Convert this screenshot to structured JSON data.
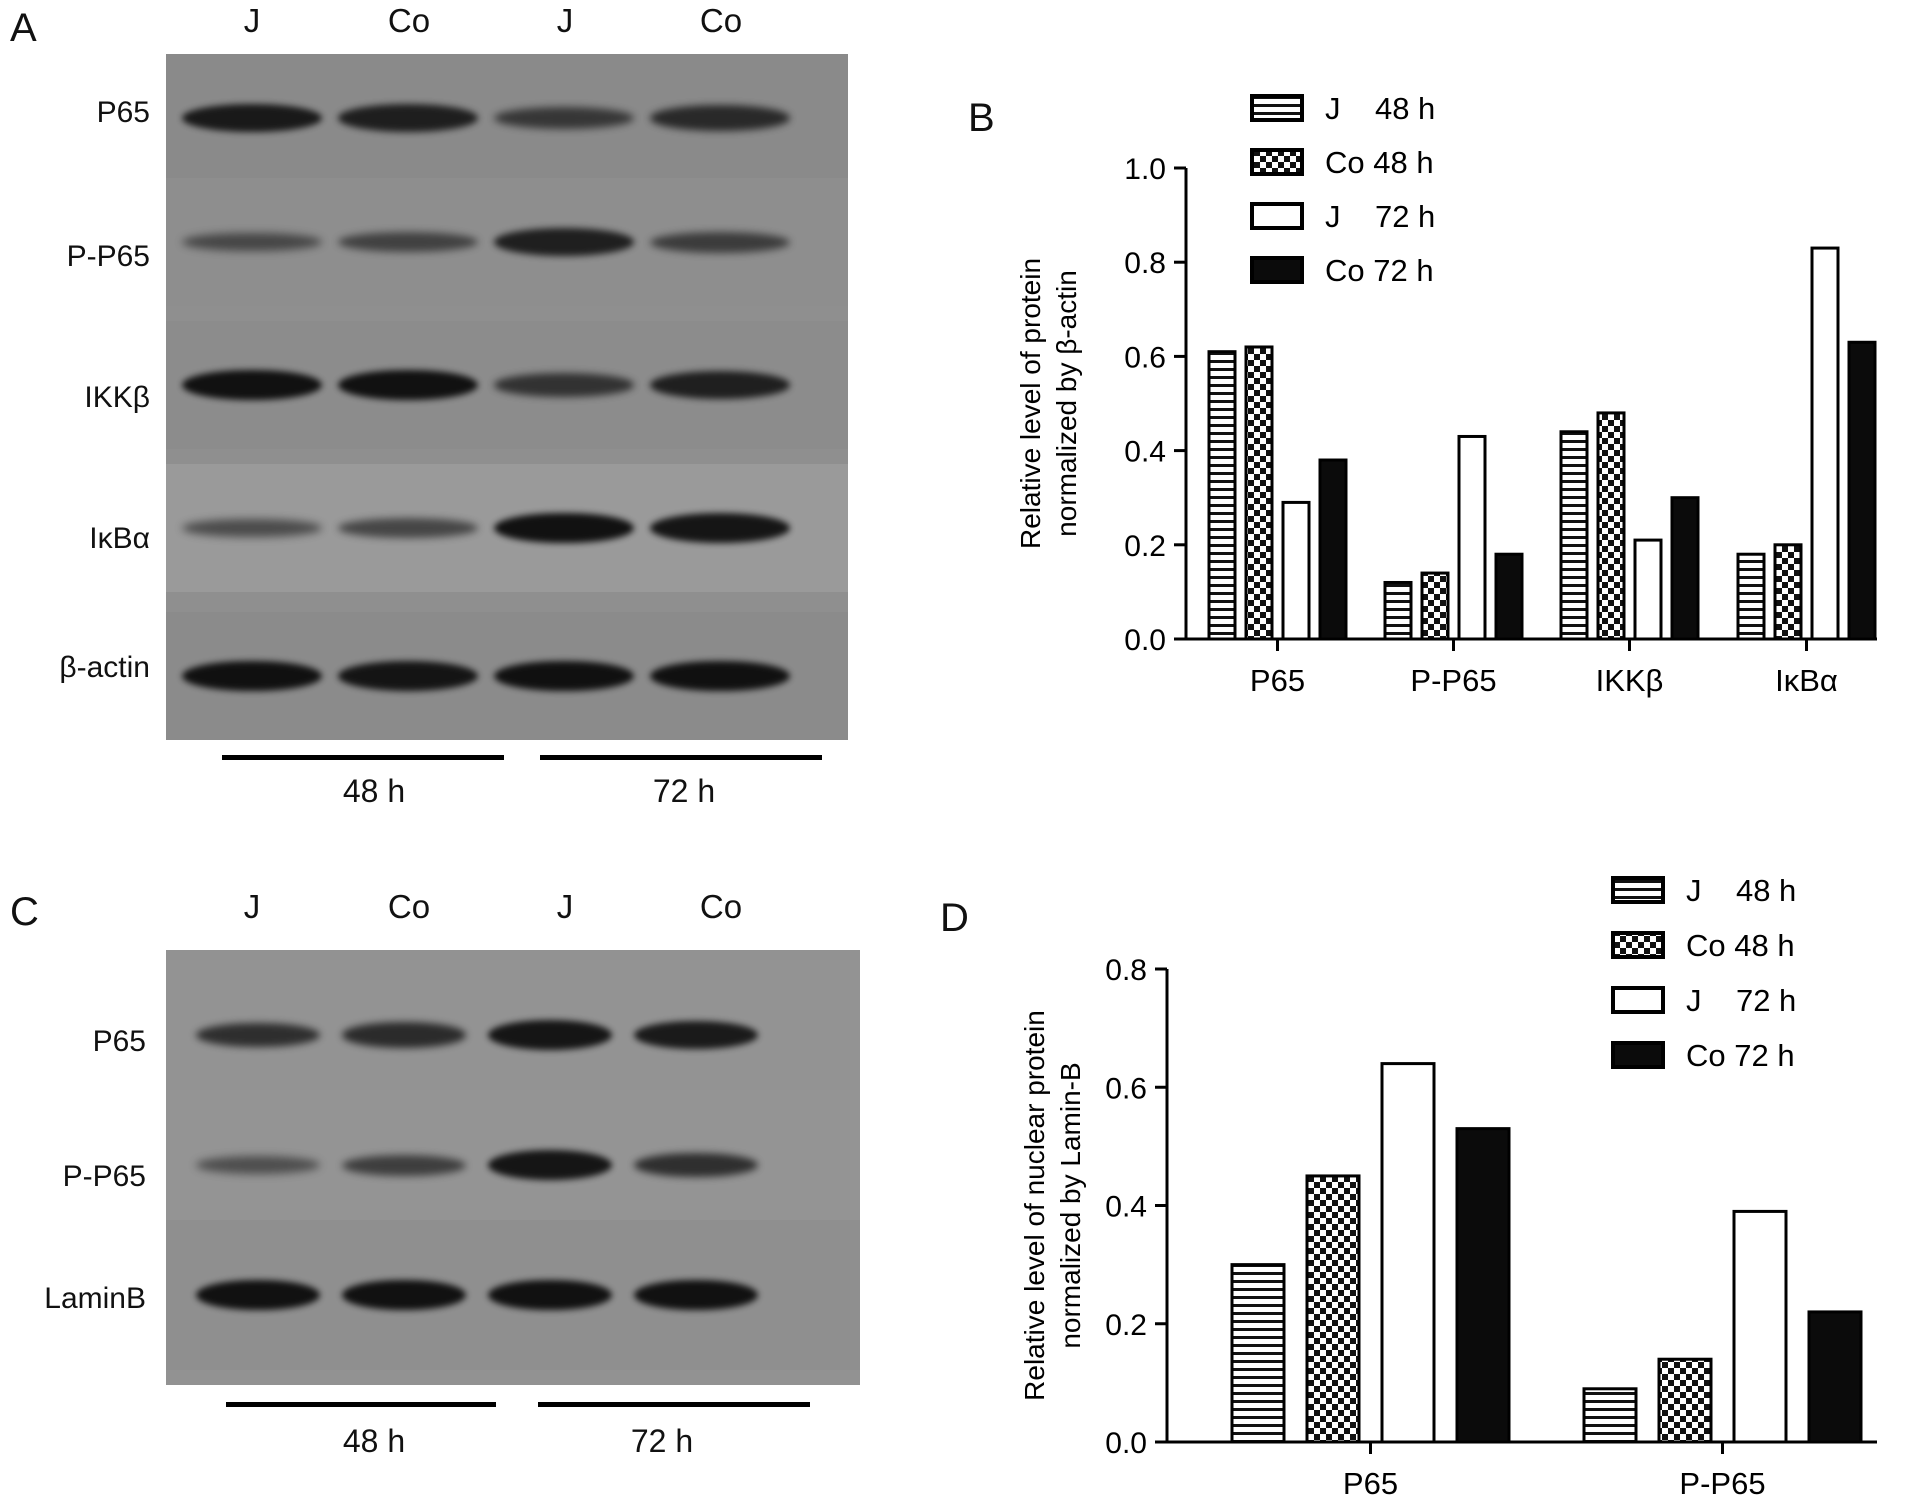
{
  "panels": {
    "a": {
      "letter": "A",
      "lanes": [
        "J",
        "Co",
        "J",
        "Co"
      ],
      "rows": [
        {
          "label": "P65",
          "intensity": [
            0.85,
            0.8,
            0.55,
            0.7
          ]
        },
        {
          "label": "P-P65",
          "intensity": [
            0.4,
            0.45,
            0.8,
            0.5
          ]
        },
        {
          "label": "IKKβ",
          "intensity": [
            0.95,
            0.95,
            0.6,
            0.8
          ]
        },
        {
          "label": "IκBα",
          "intensity": [
            0.4,
            0.45,
            0.95,
            0.9
          ]
        },
        {
          "label": "β-actin",
          "intensity": [
            0.95,
            0.9,
            0.95,
            0.95
          ]
        }
      ],
      "times": [
        "48 h",
        "72 h"
      ]
    },
    "c": {
      "letter": "C",
      "lanes": [
        "J",
        "Co",
        "J",
        "Co"
      ],
      "rows": [
        {
          "label": "P65",
          "intensity": [
            0.65,
            0.7,
            0.9,
            0.85
          ]
        },
        {
          "label": "P-P65",
          "intensity": [
            0.35,
            0.5,
            0.9,
            0.65
          ]
        },
        {
          "label": "LaminB",
          "intensity": [
            0.95,
            0.95,
            0.95,
            0.95
          ]
        }
      ],
      "times": [
        "48 h",
        "72 h"
      ]
    },
    "b": {
      "letter": "B"
    },
    "d": {
      "letter": "D"
    }
  },
  "chart_data": [
    {
      "panel": "B",
      "type": "bar",
      "categories": [
        "P65",
        "P-P65",
        "IKKβ",
        "IκBα"
      ],
      "series": [
        {
          "name": "J    48 h",
          "values": [
            0.61,
            0.12,
            0.44,
            0.18
          ],
          "pattern": "hlines"
        },
        {
          "name": "Co 48 h",
          "values": [
            0.62,
            0.14,
            0.48,
            0.2
          ],
          "pattern": "checker"
        },
        {
          "name": "J    72 h",
          "values": [
            0.29,
            0.43,
            0.21,
            0.83
          ],
          "pattern": "white"
        },
        {
          "name": "Co 72 h",
          "values": [
            0.38,
            0.18,
            0.3,
            0.63
          ],
          "pattern": "black"
        }
      ],
      "ylabel": [
        "Relative level of protein",
        "normalized by β-actin"
      ],
      "ylim": [
        0,
        1.0
      ],
      "yticks": [
        "0.0",
        "0.2",
        "0.4",
        "0.6",
        "0.8",
        "1.0"
      ],
      "legend": "top-left"
    },
    {
      "panel": "D",
      "type": "bar",
      "categories": [
        "P65",
        "P-P65"
      ],
      "series": [
        {
          "name": "J    48 h",
          "values": [
            0.3,
            0.09
          ],
          "pattern": "hlines"
        },
        {
          "name": "Co 48 h",
          "values": [
            0.45,
            0.14
          ],
          "pattern": "checker"
        },
        {
          "name": "J    72 h",
          "values": [
            0.64,
            0.39
          ],
          "pattern": "white"
        },
        {
          "name": "Co 72 h",
          "values": [
            0.53,
            0.22
          ],
          "pattern": "black"
        }
      ],
      "ylabel": [
        "Relative level of nuclear protein",
        "normalized by Lamin-B"
      ],
      "ylim": [
        0,
        0.8
      ],
      "yticks": [
        "0.0",
        "0.2",
        "0.4",
        "0.6",
        "0.8"
      ],
      "legend": "top-right"
    }
  ]
}
